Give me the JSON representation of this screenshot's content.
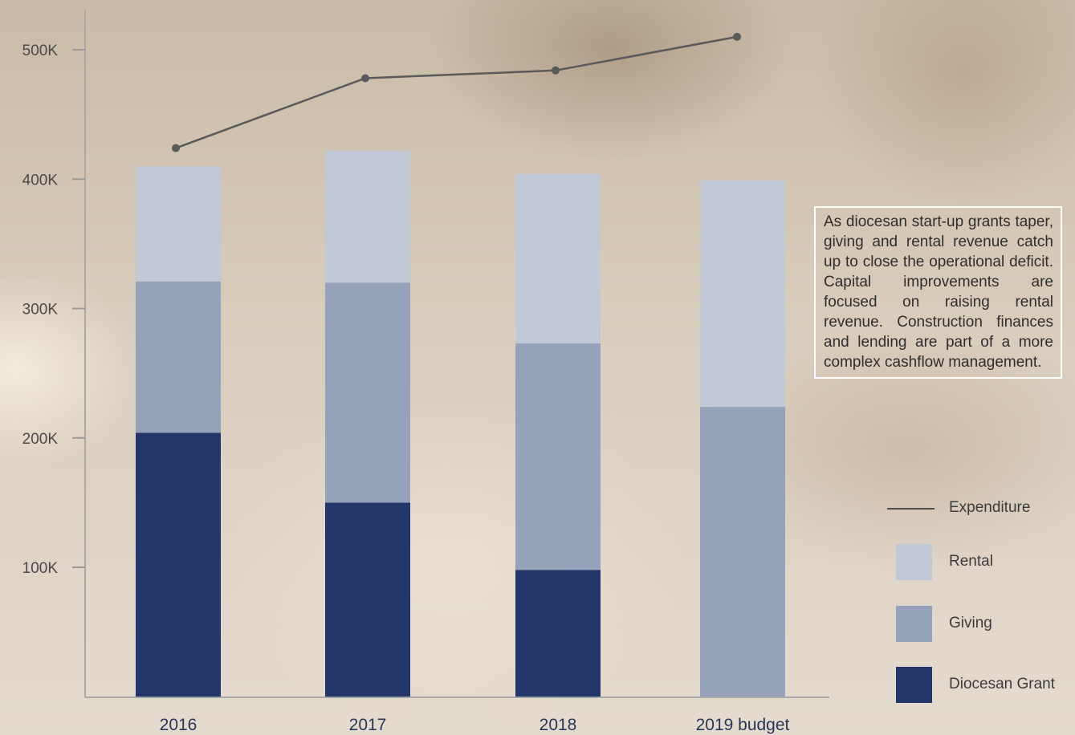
{
  "chart_data": {
    "type": "bar",
    "stacked": true,
    "categories": [
      "2016",
      "2017",
      "2018",
      "2019 budget"
    ],
    "series": [
      {
        "name": "Diocesan Grant",
        "values": [
          204000,
          150000,
          98000,
          0
        ],
        "color": "#22366a"
      },
      {
        "name": "Giving",
        "values": [
          117000,
          170000,
          175000,
          224000
        ],
        "color": "#96a1ba"
      },
      {
        "name": "Rental",
        "values": [
          89000,
          102000,
          131000,
          175000
        ],
        "color": "#c1c8d6"
      }
    ],
    "line_series": {
      "name": "Expenditure",
      "values": [
        424000,
        478000,
        484000,
        510000
      ],
      "color": "#5a5a5a"
    },
    "ylim": [
      0,
      540000
    ],
    "yticks": [
      100000,
      200000,
      300000,
      400000,
      500000
    ],
    "ytick_labels": [
      "100K",
      "200K",
      "300K",
      "400K",
      "500K"
    ],
    "title": "",
    "xlabel": "",
    "ylabel": "",
    "legend_position": "right",
    "annotation": "As diocesan start-up grants taper, giving and rental revenue catch up to close the operational deficit. Capital improvements are focused on raising rental revenue. Construction finances and lending are part of a more complex cashflow management."
  },
  "legend": {
    "expenditure": "Expenditure",
    "rental": "Rental",
    "giving": "Giving",
    "diocesan_grant": "Diocesan Grant"
  }
}
